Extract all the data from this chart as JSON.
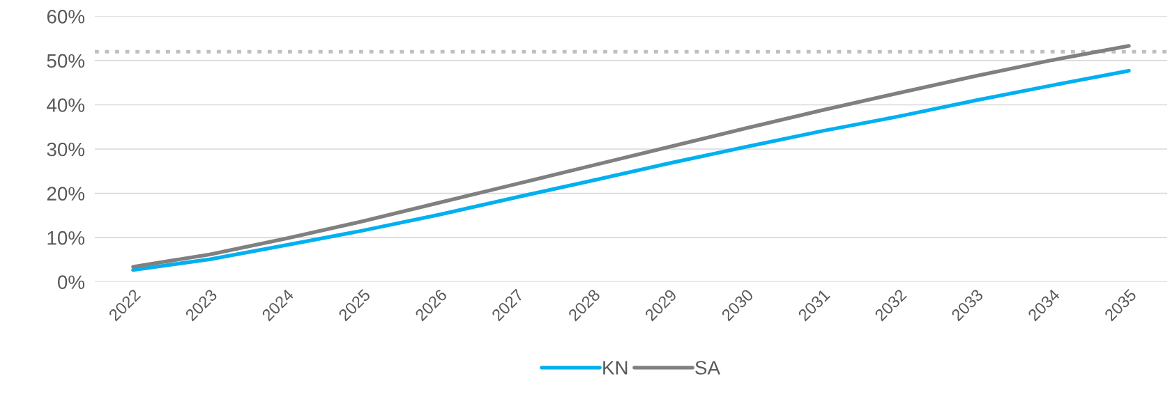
{
  "chart_data": {
    "type": "line",
    "categories": [
      "2022",
      "2023",
      "2024",
      "2025",
      "2026",
      "2027",
      "2028",
      "2029",
      "2030",
      "2031",
      "2032",
      "2033",
      "2034",
      "2035"
    ],
    "series": [
      {
        "name": "KN",
        "color": "#00b0f0",
        "values": [
          2.7,
          5.1,
          8.3,
          11.6,
          15.2,
          19.1,
          22.9,
          26.8,
          30.5,
          34.1,
          37.4,
          41.0,
          44.4,
          47.7
        ]
      },
      {
        "name": "SA",
        "color": "#808080",
        "values": [
          3.4,
          6.2,
          9.8,
          13.7,
          17.9,
          22.1,
          26.3,
          30.5,
          34.7,
          38.8,
          42.7,
          46.5,
          50.1,
          53.3
        ]
      }
    ],
    "ylim": [
      0,
      60
    ],
    "yticks": [
      {
        "value": 0,
        "label": "0%"
      },
      {
        "value": 10,
        "label": "10%"
      },
      {
        "value": 20,
        "label": "20%"
      },
      {
        "value": 30,
        "label": "30%"
      },
      {
        "value": 40,
        "label": "40%"
      },
      {
        "value": 50,
        "label": "50%"
      },
      {
        "value": 60,
        "label": "60%"
      }
    ],
    "ref_lines": [
      {
        "axis": "y",
        "value": 52,
        "color": "#bfbfbf",
        "line_style": "dotted"
      }
    ],
    "grid": "y",
    "legend": "bottom",
    "marker": "none",
    "line_style": "solid"
  }
}
